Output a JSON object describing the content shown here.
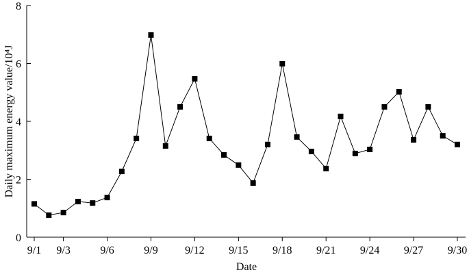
{
  "chart_data": {
    "type": "line",
    "x_label": "Date",
    "y_label": "Daily maximum energy value/10⁴J",
    "categories": [
      "9/1",
      null,
      "9/3",
      null,
      null,
      "9/6",
      null,
      null,
      "9/9",
      null,
      null,
      "9/12",
      null,
      null,
      "9/15",
      null,
      null,
      "9/18",
      null,
      null,
      "9/21",
      null,
      null,
      "9/24",
      null,
      null,
      "9/27",
      null,
      null,
      "9/30"
    ],
    "series": [
      {
        "color": "#000000",
        "values": [
          1.15,
          0.76,
          0.85,
          1.23,
          1.18,
          1.37,
          2.27,
          3.41,
          6.98,
          3.15,
          4.5,
          5.47,
          3.41,
          2.84,
          2.49,
          1.87,
          3.2,
          5.99,
          3.46,
          2.96,
          2.37,
          4.17,
          2.89,
          3.03,
          4.5,
          5.02,
          3.36,
          4.5,
          3.5,
          3.2
        ]
      }
    ],
    "ylim": [
      0,
      8
    ],
    "yticks": [
      0,
      2,
      4,
      6,
      8
    ]
  }
}
